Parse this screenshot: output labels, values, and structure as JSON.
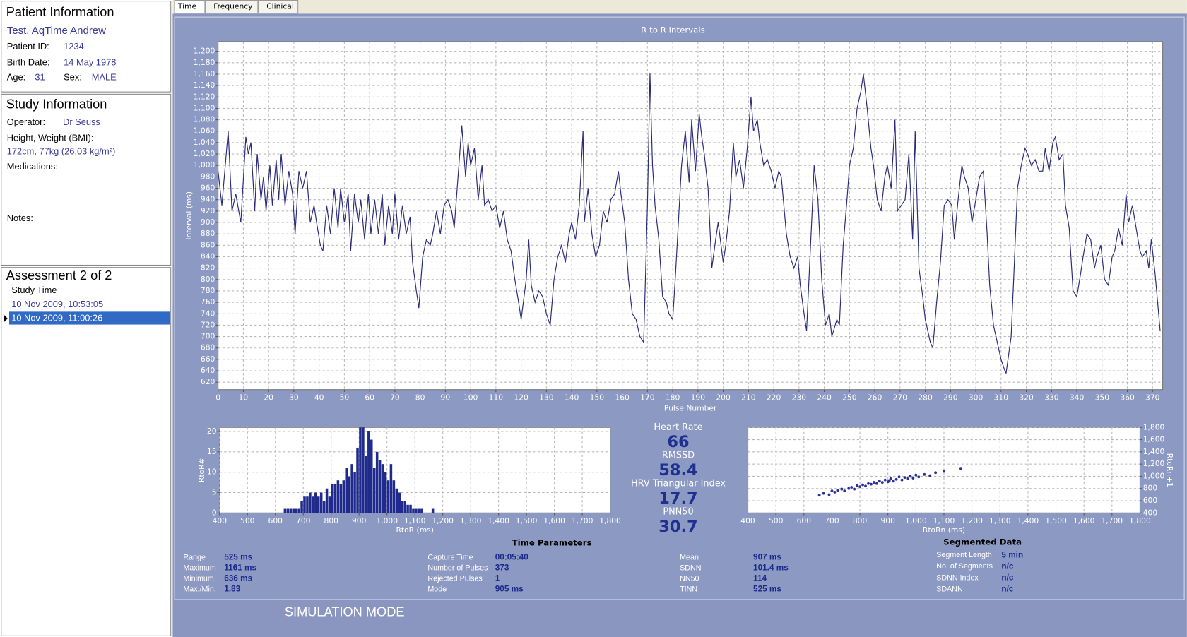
{
  "tabs": [
    "Time",
    "Frequency",
    "Clinical"
  ],
  "patient_info": {
    "heading": "Patient Information",
    "name": "Test, AqTime Andrew",
    "patient_id_label": "Patient ID:",
    "patient_id": "1234",
    "birth_date_label": "Birth Date:",
    "birth_date": "14 May 1978",
    "age_label": "Age:",
    "age": "31",
    "sex_label": "Sex:",
    "sex": "MALE"
  },
  "study_info": {
    "heading": "Study Information",
    "operator_label": "Operator:",
    "operator": "Dr Seuss",
    "height_weight_label": "Height, Weight (BMI):",
    "height_weight": "172cm, 77kg (26.03 kg/m²)",
    "medications_label": "Medications:",
    "notes_label": "Notes:"
  },
  "assessment": {
    "heading": "Assessment 2 of 2",
    "column": "Study Time",
    "rows": [
      "10 Nov 2009, 10:53:05",
      "10 Nov 2009, 11:00:26"
    ],
    "selected": 1
  },
  "mode_banner": "SIMULATION MODE",
  "chart_data": [
    {
      "type": "line",
      "title": "R to R Intervals",
      "x_label": "Pulse Number",
      "y_label": "Interval (ms)",
      "color": "#2b2b7c",
      "grid": true,
      "xlim": [
        0,
        374
      ],
      "ylim": [
        607,
        1217
      ],
      "xticks": [
        0,
        10,
        20,
        30,
        40,
        50,
        60,
        70,
        80,
        90,
        100,
        110,
        120,
        130,
        140,
        150,
        160,
        170,
        180,
        190,
        200,
        210,
        220,
        230,
        240,
        250,
        260,
        270,
        280,
        290,
        300,
        310,
        320,
        330,
        340,
        350,
        360,
        370
      ],
      "yticks": [
        620,
        640,
        660,
        680,
        700,
        720,
        740,
        760,
        780,
        800,
        820,
        840,
        860,
        880,
        900,
        920,
        940,
        960,
        980,
        {
          "value": 1000,
          "label": "1,000"
        },
        {
          "value": 1020,
          "label": "1,020"
        },
        {
          "value": 1040,
          "label": "1,040"
        },
        {
          "value": 1060,
          "label": "1,060"
        },
        {
          "value": 1080,
          "label": "1,080"
        },
        {
          "value": 1100,
          "label": "1,100"
        },
        {
          "value": 1120,
          "label": "1,120"
        },
        {
          "value": 1140,
          "label": "1,140"
        },
        {
          "value": 1160,
          "label": "1,160"
        },
        {
          "value": 1180,
          "label": "1,180"
        },
        {
          "value": 1200,
          "label": "1,200"
        }
      ],
      "x": [
        0,
        1.5,
        4,
        5.5,
        7,
        9,
        11,
        12,
        13,
        14.5,
        15.5,
        17,
        18,
        19,
        20.5,
        21.5,
        23,
        24,
        25,
        26.5,
        28,
        29.5,
        30.5,
        32,
        33.5,
        35,
        36.5,
        38,
        39,
        40.5,
        41.5,
        43,
        44.5,
        46,
        47.5,
        48.5,
        50,
        51.5,
        52.5,
        54,
        55.5,
        56.5,
        58,
        59.5,
        60.5,
        62,
        63.5,
        65,
        66,
        67.5,
        69,
        70,
        71.5,
        73,
        74.5,
        76,
        77,
        78.5,
        79.5,
        81,
        82.5,
        84,
        85,
        86.5,
        88,
        89.5,
        91,
        92.5,
        93.5,
        95,
        96.5,
        98,
        99,
        100,
        101.5,
        103,
        104.5,
        105.5,
        107,
        108.5,
        110,
        111.5,
        113,
        114.5,
        116,
        117.5,
        119,
        120,
        122,
        123,
        124,
        125.5,
        127,
        128.5,
        130,
        131.5,
        133,
        134.5,
        136,
        137.5,
        139,
        140,
        141.5,
        143,
        144.5,
        145,
        146.5,
        148,
        149.5,
        151,
        152.5,
        154,
        155.5,
        157,
        158.5,
        159.5,
        161,
        162.5,
        164,
        165.5,
        167,
        168.5,
        170,
        171,
        172,
        173,
        174.5,
        176,
        177.5,
        178.5,
        180,
        181,
        182.5,
        183.5,
        185,
        186.5,
        187.5,
        189,
        190.5,
        191.5,
        192.5,
        194,
        195.5,
        197,
        198,
        200,
        201,
        202.5,
        204,
        205,
        206.5,
        208,
        209.5,
        211,
        212,
        213.5,
        214.5,
        216,
        217.5,
        219,
        220.5,
        222,
        223,
        225,
        226.5,
        228,
        229.5,
        230.5,
        232,
        233,
        235,
        236,
        237.5,
        239,
        240.5,
        242,
        243,
        245,
        246,
        247.5,
        249,
        250,
        251.5,
        253,
        254.5,
        255.5,
        257,
        258.5,
        259.5,
        261,
        262.5,
        264,
        265,
        266.5,
        268,
        269,
        270.5,
        272,
        273.5,
        275,
        276,
        277.5,
        279,
        280,
        282,
        283,
        284.5,
        286,
        287.5,
        289,
        290.5,
        291.5,
        293,
        294.5,
        295.5,
        297,
        298.5,
        300,
        301.5,
        303,
        304.5,
        305.5,
        307,
        308.5,
        310,
        311.5,
        312,
        314,
        315,
        316.5,
        318,
        319.5,
        320.5,
        322,
        323.5,
        325,
        326.5,
        327.5,
        329,
        330.5,
        331.5,
        333,
        334.5,
        335.5,
        337,
        338.5,
        340,
        341.5,
        342.5,
        344,
        345.5,
        347,
        348,
        349.5,
        351,
        352.5,
        354,
        355,
        356.5,
        358,
        359.5,
        360.5,
        362,
        363.5,
        365,
        366,
        367.5,
        368.5,
        369.5,
        371,
        373
      ],
      "values": [
        990,
        930,
        1060,
        920,
        950,
        900,
        1050,
        1020,
        1040,
        920,
        1020,
        940,
        980,
        920,
        1000,
        930,
        1010,
        940,
        1020,
        930,
        990,
        950,
        880,
        990,
        960,
        990,
        900,
        930,
        900,
        860,
        850,
        930,
        880,
        960,
        890,
        960,
        900,
        950,
        850,
        950,
        900,
        940,
        870,
        950,
        880,
        940,
        880,
        950,
        860,
        930,
        880,
        950,
        870,
        930,
        880,
        910,
        830,
        780,
        750,
        840,
        870,
        860,
        880,
        920,
        880,
        930,
        940,
        920,
        890,
        980,
        1070,
        980,
        1040,
        1000,
        1030,
        940,
        1000,
        930,
        940,
        920,
        930,
        890,
        920,
        870,
        850,
        800,
        760,
        730,
        800,
        870,
        790,
        760,
        780,
        770,
        740,
        720,
        800,
        840,
        860,
        830,
        880,
        900,
        870,
        930,
        1060,
        900,
        960,
        880,
        840,
        860,
        920,
        900,
        940,
        950,
        990,
        950,
        900,
        800,
        740,
        730,
        700,
        690,
        930,
        1161,
        1000,
        930,
        870,
        770,
        760,
        740,
        730,
        800,
        920,
        1000,
        1060,
        970,
        1080,
        990,
        1090,
        1050,
        1020,
        960,
        820,
        870,
        900,
        830,
        860,
        920,
        1040,
        980,
        1010,
        960,
        1030,
        1120,
        1060,
        1080,
        1040,
        1000,
        1010,
        990,
        960,
        990,
        980,
        880,
        840,
        820,
        840,
        790,
        740,
        710,
        900,
        1000,
        940,
        800,
        720,
        740,
        700,
        730,
        720,
        860,
        940,
        1000,
        1030,
        1100,
        1130,
        1160,
        1100,
        1030,
        1000,
        940,
        920,
        980,
        1000,
        960,
        1080,
        920,
        930,
        940,
        1020,
        870,
        1060,
        820,
        770,
        730,
        690,
        680,
        760,
        830,
        930,
        940,
        930,
        870,
        940,
        1000,
        980,
        960,
        900,
        940,
        980,
        990,
        880,
        790,
        720,
        690,
        660,
        640,
        636,
        700,
        800,
        960,
        1000,
        1030,
        1020,
        1000,
        1010,
        990,
        990,
        1030,
        990,
        1040,
        1050,
        1010,
        1020,
        930,
        890,
        780,
        770,
        810,
        840,
        880,
        870,
        820,
        840,
        860,
        800,
        790,
        840,
        850,
        890,
        860,
        950,
        900,
        930,
        890,
        850,
        840,
        850,
        820,
        870,
        810,
        710
      ]
    },
    {
      "type": "histogram",
      "x_label": "RtoR (ms)",
      "y_label": "RtoR#",
      "color": "#1f2a8c",
      "grid": true,
      "xlim": [
        400,
        1800
      ],
      "ylim": [
        0,
        21
      ],
      "xticks": [
        400,
        500,
        600,
        700,
        800,
        900,
        {
          "value": 1000,
          "label": "1,000"
        },
        {
          "value": 1100,
          "label": "1,100"
        },
        {
          "value": 1200,
          "label": "1,200"
        },
        {
          "value": 1300,
          "label": "1,300"
        },
        {
          "value": 1400,
          "label": "1,400"
        },
        {
          "value": 1500,
          "label": "1,500"
        },
        {
          "value": 1600,
          "label": "1,600"
        },
        {
          "value": 1700,
          "label": "1,700"
        },
        {
          "value": 1800,
          "label": "1,800"
        }
      ],
      "yticks": [
        0,
        5,
        10,
        15,
        20
      ],
      "bins": [
        630,
        640,
        650,
        660,
        670,
        680,
        690,
        700,
        710,
        720,
        730,
        740,
        750,
        760,
        770,
        780,
        790,
        800,
        810,
        820,
        830,
        840,
        850,
        860,
        870,
        880,
        890,
        900,
        910,
        920,
        930,
        940,
        950,
        960,
        970,
        980,
        990,
        1000,
        1010,
        1020,
        1030,
        1040,
        1050,
        1060,
        1070,
        1080,
        1090,
        1100,
        1110,
        1120,
        1130,
        1140,
        1150,
        1160,
        1170
      ],
      "values": [
        1,
        1,
        1,
        1,
        1,
        1,
        3,
        4,
        4,
        5,
        4,
        5,
        4,
        5,
        3,
        6,
        4,
        7,
        7,
        8,
        7,
        8,
        11,
        9,
        12,
        10,
        16,
        21,
        21,
        14,
        20,
        18,
        11,
        15,
        13,
        12,
        10,
        8,
        12,
        8,
        6,
        5,
        3,
        3,
        2,
        2,
        1,
        1,
        1,
        1,
        0,
        0,
        0,
        1
      ]
    },
    {
      "type": "scatter",
      "x_label": "RtoRn (ms)",
      "y_label": "RtoRn+1",
      "y_axis_side": "right",
      "color": "#2b2f9a",
      "grid": true,
      "xlim": [
        400,
        1800
      ],
      "ylim": [
        400,
        1800
      ],
      "xticks": [
        400,
        500,
        600,
        700,
        800,
        900,
        {
          "value": 1000,
          "label": "1,000"
        },
        {
          "value": 1100,
          "label": "1,100"
        },
        {
          "value": 1200,
          "label": "1,200"
        },
        {
          "value": 1300,
          "label": "1,300"
        },
        {
          "value": 1400,
          "label": "1,400"
        },
        {
          "value": 1500,
          "label": "1,500"
        },
        {
          "value": 1600,
          "label": "1,600"
        },
        {
          "value": 1700,
          "label": "1,700"
        },
        {
          "value": 1800,
          "label": "1,800"
        }
      ],
      "yticks": [
        400,
        600,
        800,
        {
          "value": 1000,
          "label": "1,000"
        },
        {
          "value": 1200,
          "label": "1,200"
        },
        {
          "value": 1400,
          "label": "1,400"
        },
        {
          "value": 1600,
          "label": "1,600"
        },
        {
          "value": 1800,
          "label": "1,800"
        }
      ],
      "x": [
        655,
        670,
        690,
        700,
        710,
        720,
        735,
        745,
        760,
        770,
        780,
        790,
        800,
        810,
        820,
        830,
        840,
        850,
        860,
        870,
        880,
        890,
        900,
        905,
        910,
        920,
        930,
        940,
        950,
        960,
        970,
        980,
        990,
        1000,
        1010,
        1030,
        1050,
        1070,
        1100,
        1160
      ],
      "values": [
        690,
        720,
        700,
        760,
        740,
        770,
        790,
        760,
        800,
        820,
        790,
        850,
        830,
        860,
        840,
        880,
        870,
        900,
        880,
        920,
        900,
        940,
        910,
        930,
        960,
        920,
        950,
        990,
        940,
        980,
        960,
        1000,
        970,
        1020,
        990,
        1030,
        1010,
        1060,
        1080,
        1130
      ]
    }
  ],
  "summary": [
    {
      "label": "Heart Rate",
      "value": 66
    },
    {
      "label": "RMSSD",
      "value": 58.4
    },
    {
      "label": "HRV Triangular Index",
      "value": 17.7
    },
    {
      "label": "PNN50",
      "value": 30.7
    }
  ],
  "time_parameters": {
    "title": "Time Parameters",
    "columns": [
      [
        {
          "label": "Range",
          "value": "525 ms"
        },
        {
          "label": "Maximum",
          "value": "1161 ms"
        },
        {
          "label": "Minimum",
          "value": "636 ms"
        },
        {
          "label": "Max./Min.",
          "value": "1.83"
        }
      ],
      [
        {
          "label": "Capture Time",
          "value": "00:05:40"
        },
        {
          "label": "Number of Pulses",
          "value": "373"
        },
        {
          "label": "Rejected Pulses",
          "value": "1"
        },
        {
          "label": "Mode",
          "value": "905 ms"
        }
      ],
      [
        {
          "label": "Mean",
          "value": "907 ms"
        },
        {
          "label": "SDNN",
          "value": "101.4 ms"
        },
        {
          "label": "NN50",
          "value": "114"
        },
        {
          "label": "TINN",
          "value": "525 ms"
        }
      ]
    ]
  },
  "segmented_data": {
    "title": "Segmented Data",
    "rows": [
      {
        "label": "Segment Length",
        "value": "5 min"
      },
      {
        "label": "No. of Segments",
        "value": "n/c"
      },
      {
        "label": "SDNN Index",
        "value": "n/c"
      },
      {
        "label": "SDANN",
        "value": "n/c"
      }
    ]
  }
}
